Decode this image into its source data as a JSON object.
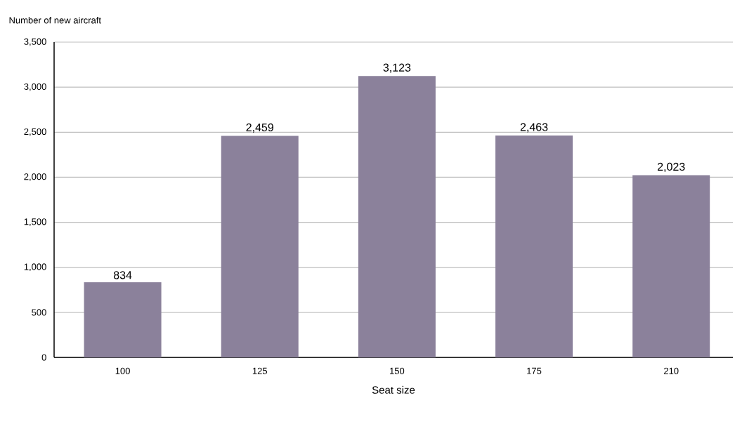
{
  "chart_data": {
    "type": "bar",
    "ylabel": "Number of new aircraft",
    "xlabel": "Seat size",
    "categories": [
      "100",
      "125",
      "150",
      "175",
      "210"
    ],
    "values": [
      834,
      2459,
      3123,
      2463,
      2023
    ],
    "value_labels": [
      "834",
      "2,459",
      "3,123",
      "2,463",
      "2,023"
    ],
    "color": "#8b819b",
    "ylim": [
      0,
      3500
    ],
    "yticks": [
      0,
      500,
      {
        "value": 1000,
        "label": "1,000"
      },
      {
        "value": 1500,
        "label": "1,500"
      },
      {
        "value": 2000,
        "label": "2,000"
      },
      {
        "value": 2500,
        "label": "2,500"
      },
      {
        "value": 3000,
        "label": "3,000"
      },
      {
        "value": 3500,
        "label": "3,500"
      }
    ],
    "grid": "y"
  }
}
